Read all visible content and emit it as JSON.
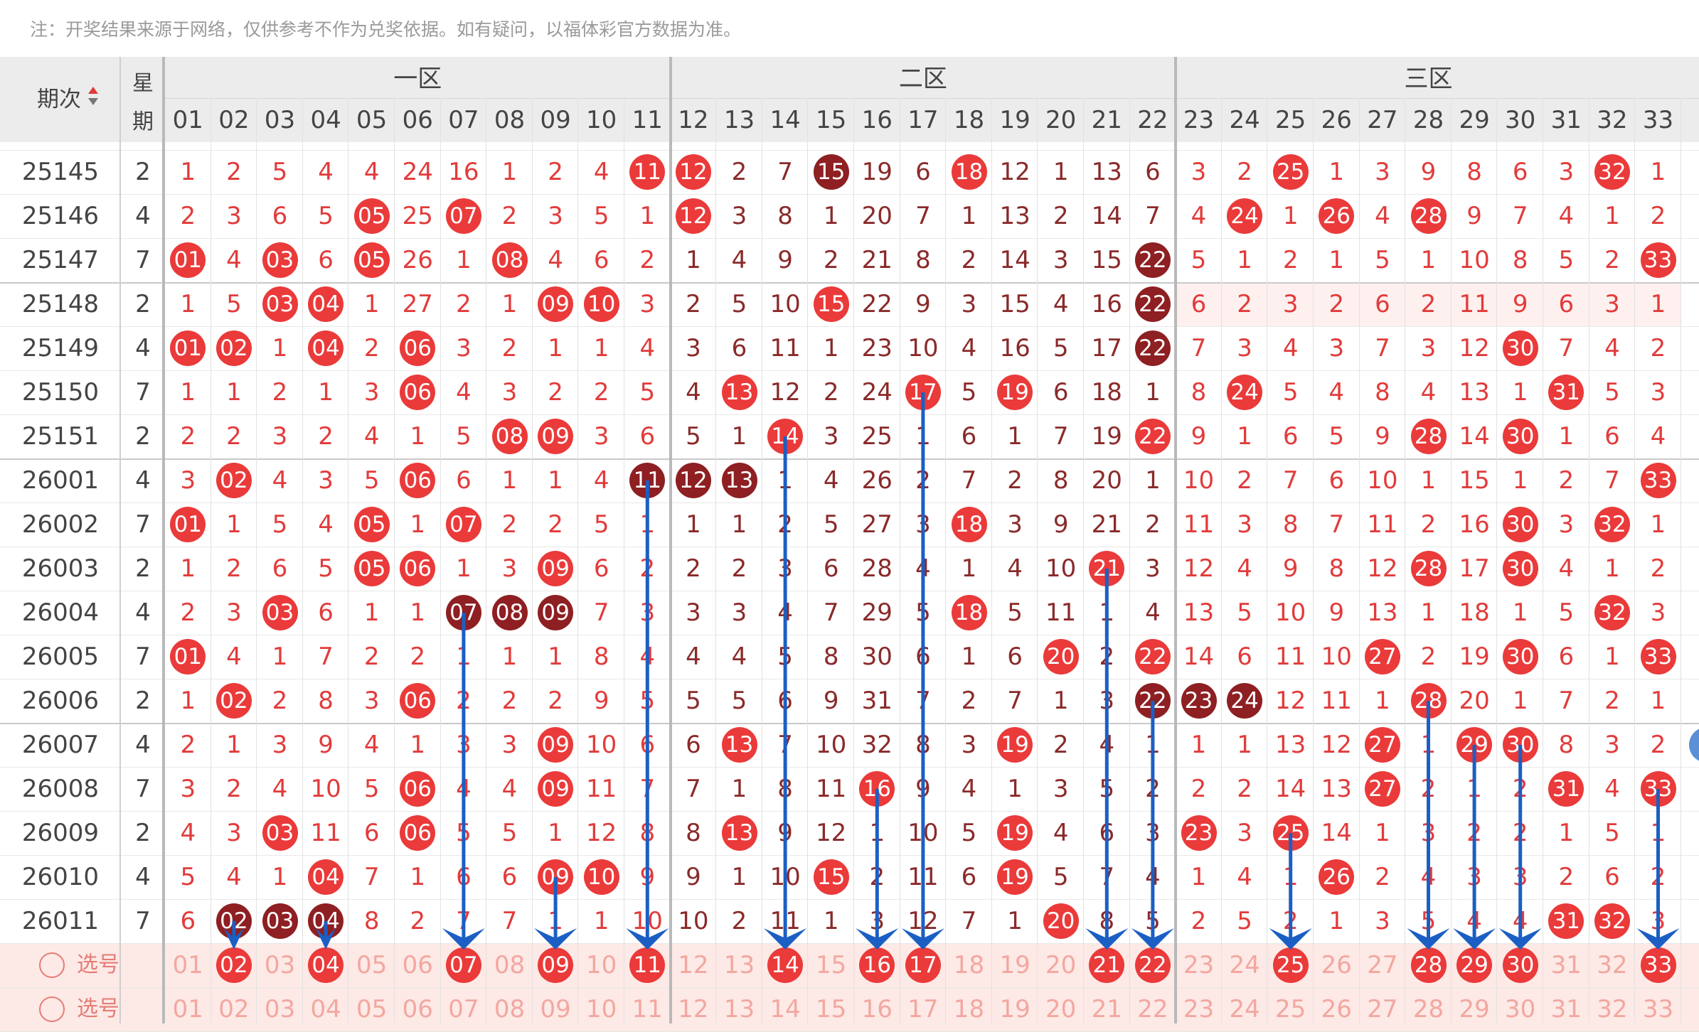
{
  "note": "注：开奖结果来源于网络，仅供参考不作为兑奖依据。如有疑问，以福体彩官方数据为准。",
  "header": {
    "issue_label": "期次",
    "week_label_top": "星",
    "week_label_bottom": "期",
    "zones": [
      "一区",
      "二区",
      "三区"
    ],
    "numbers": [
      "01",
      "02",
      "03",
      "04",
      "05",
      "06",
      "07",
      "08",
      "09",
      "10",
      "11",
      "12",
      "13",
      "14",
      "15",
      "16",
      "17",
      "18",
      "19",
      "20",
      "21",
      "22",
      "23",
      "24",
      "25",
      "26",
      "27",
      "28",
      "29",
      "30",
      "31",
      "32",
      "33"
    ]
  },
  "rows": [
    {
      "issue": "25145",
      "week": "2",
      "cells": [
        "1",
        "2",
        "5",
        "4",
        "4",
        "24",
        "16",
        "1",
        "2",
        "4",
        "11",
        "12",
        "2",
        "7",
        "15",
        "19",
        "6",
        "18",
        "12",
        "1",
        "13",
        "6",
        "3",
        "2",
        "25",
        "1",
        "3",
        "9",
        "8",
        "6",
        "3",
        "32",
        "1"
      ],
      "balls": {
        "10": "r",
        "11": "r",
        "14": "d",
        "17": "r",
        "24": "r",
        "31": "r"
      }
    },
    {
      "issue": "25146",
      "week": "4",
      "cells": [
        "2",
        "3",
        "6",
        "5",
        "05",
        "25",
        "07",
        "2",
        "3",
        "5",
        "1",
        "12",
        "3",
        "8",
        "1",
        "20",
        "7",
        "1",
        "13",
        "2",
        "14",
        "7",
        "4",
        "24",
        "1",
        "26",
        "4",
        "28",
        "9",
        "7",
        "4",
        "1",
        "2"
      ],
      "balls": {
        "4": "r",
        "6": "r",
        "11": "r",
        "23": "r",
        "25": "r",
        "27": "r"
      }
    },
    {
      "issue": "25147",
      "week": "7",
      "cells": [
        "01",
        "4",
        "03",
        "6",
        "05",
        "26",
        "1",
        "08",
        "4",
        "6",
        "2",
        "1",
        "4",
        "9",
        "2",
        "21",
        "8",
        "2",
        "14",
        "3",
        "15",
        "22",
        "5",
        "1",
        "2",
        "1",
        "5",
        "1",
        "10",
        "8",
        "5",
        "2",
        "33"
      ],
      "balls": {
        "0": "r",
        "2": "r",
        "4": "r",
        "7": "r",
        "21": "d",
        "32": "r"
      }
    },
    {
      "issue": "25148",
      "week": "2",
      "cells": [
        "1",
        "5",
        "03",
        "04",
        "1",
        "27",
        "2",
        "1",
        "09",
        "10",
        "3",
        "2",
        "5",
        "10",
        "15",
        "22",
        "9",
        "3",
        "15",
        "4",
        "16",
        "22",
        "6",
        "2",
        "3",
        "2",
        "6",
        "2",
        "11",
        "9",
        "6",
        "3",
        "1"
      ],
      "balls": {
        "2": "r",
        "3": "r",
        "8": "r",
        "9": "r",
        "14": "r",
        "21": "d"
      },
      "shade3": true
    },
    {
      "issue": "25149",
      "week": "4",
      "cells": [
        "01",
        "02",
        "1",
        "04",
        "2",
        "06",
        "3",
        "2",
        "1",
        "1",
        "4",
        "3",
        "6",
        "11",
        "1",
        "23",
        "10",
        "4",
        "16",
        "5",
        "17",
        "22",
        "7",
        "3",
        "4",
        "3",
        "7",
        "3",
        "12",
        "30",
        "7",
        "4",
        "2"
      ],
      "balls": {
        "0": "r",
        "1": "r",
        "3": "r",
        "5": "r",
        "21": "d",
        "29": "r"
      }
    },
    {
      "issue": "25150",
      "week": "7",
      "cells": [
        "1",
        "1",
        "2",
        "1",
        "3",
        "06",
        "4",
        "3",
        "2",
        "2",
        "5",
        "4",
        "13",
        "12",
        "2",
        "24",
        "17",
        "5",
        "19",
        "6",
        "18",
        "1",
        "8",
        "24",
        "5",
        "4",
        "8",
        "4",
        "13",
        "1",
        "31",
        "5",
        "3"
      ],
      "balls": {
        "5": "r",
        "12": "r",
        "16": "r",
        "18": "r",
        "23": "r",
        "30": "r"
      }
    },
    {
      "issue": "25151",
      "week": "2",
      "cells": [
        "2",
        "2",
        "3",
        "2",
        "4",
        "1",
        "5",
        "08",
        "09",
        "3",
        "6",
        "5",
        "1",
        "14",
        "3",
        "25",
        "1",
        "6",
        "1",
        "7",
        "19",
        "22",
        "9",
        "1",
        "6",
        "5",
        "9",
        "28",
        "14",
        "30",
        "1",
        "6",
        "4"
      ],
      "balls": {
        "7": "r",
        "8": "r",
        "13": "r",
        "21": "r",
        "27": "r",
        "29": "r"
      }
    },
    {
      "issue": "26001",
      "week": "4",
      "cells": [
        "3",
        "02",
        "4",
        "3",
        "5",
        "06",
        "6",
        "1",
        "1",
        "4",
        "11",
        "12",
        "13",
        "1",
        "4",
        "26",
        "2",
        "7",
        "2",
        "8",
        "20",
        "1",
        "10",
        "2",
        "7",
        "6",
        "10",
        "1",
        "15",
        "1",
        "2",
        "7",
        "33"
      ],
      "balls": {
        "1": "r",
        "5": "r",
        "10": "d",
        "11": "d",
        "12": "d",
        "32": "r"
      }
    },
    {
      "issue": "26002",
      "week": "7",
      "cells": [
        "01",
        "1",
        "5",
        "4",
        "05",
        "1",
        "07",
        "2",
        "2",
        "5",
        "1",
        "1",
        "1",
        "2",
        "5",
        "27",
        "3",
        "18",
        "3",
        "9",
        "21",
        "2",
        "11",
        "3",
        "8",
        "7",
        "11",
        "2",
        "16",
        "30",
        "3",
        "32",
        "1"
      ],
      "balls": {
        "0": "r",
        "4": "r",
        "6": "r",
        "17": "r",
        "29": "r",
        "31": "r"
      }
    },
    {
      "issue": "26003",
      "week": "2",
      "cells": [
        "1",
        "2",
        "6",
        "5",
        "05",
        "06",
        "1",
        "3",
        "09",
        "6",
        "2",
        "2",
        "2",
        "3",
        "6",
        "28",
        "4",
        "1",
        "4",
        "10",
        "21",
        "3",
        "12",
        "4",
        "9",
        "8",
        "12",
        "28",
        "17",
        "30",
        "4",
        "1",
        "2"
      ],
      "balls": {
        "4": "r",
        "5": "r",
        "8": "r",
        "20": "r",
        "27": "r",
        "29": "r"
      }
    },
    {
      "issue": "26004",
      "week": "4",
      "cells": [
        "2",
        "3",
        "03",
        "6",
        "1",
        "1",
        "07",
        "08",
        "09",
        "7",
        "3",
        "3",
        "3",
        "4",
        "7",
        "29",
        "5",
        "18",
        "5",
        "11",
        "1",
        "4",
        "13",
        "5",
        "10",
        "9",
        "13",
        "1",
        "18",
        "1",
        "5",
        "32",
        "3"
      ],
      "balls": {
        "2": "r",
        "6": "d",
        "7": "d",
        "8": "d",
        "17": "r",
        "31": "r"
      }
    },
    {
      "issue": "26005",
      "week": "7",
      "cells": [
        "01",
        "4",
        "1",
        "7",
        "2",
        "2",
        "1",
        "1",
        "1",
        "8",
        "4",
        "4",
        "4",
        "5",
        "8",
        "30",
        "6",
        "1",
        "6",
        "20",
        "2",
        "22",
        "14",
        "6",
        "11",
        "10",
        "27",
        "2",
        "19",
        "30",
        "6",
        "1",
        "33"
      ],
      "balls": {
        "0": "r",
        "19": "r",
        "21": "r",
        "26": "r",
        "29": "r",
        "32": "r"
      }
    },
    {
      "issue": "26006",
      "week": "2",
      "cells": [
        "1",
        "02",
        "2",
        "8",
        "3",
        "06",
        "2",
        "2",
        "2",
        "9",
        "5",
        "5",
        "5",
        "6",
        "9",
        "31",
        "7",
        "2",
        "7",
        "1",
        "3",
        "22",
        "23",
        "24",
        "12",
        "11",
        "1",
        "28",
        "20",
        "1",
        "7",
        "2",
        "1"
      ],
      "balls": {
        "1": "r",
        "5": "r",
        "21": "d",
        "22": "d",
        "23": "d",
        "27": "r"
      }
    },
    {
      "issue": "26007",
      "week": "4",
      "cells": [
        "2",
        "1",
        "3",
        "9",
        "4",
        "1",
        "3",
        "3",
        "09",
        "10",
        "6",
        "6",
        "13",
        "7",
        "10",
        "32",
        "8",
        "3",
        "19",
        "2",
        "4",
        "1",
        "1",
        "1",
        "13",
        "12",
        "27",
        "1",
        "29",
        "30",
        "8",
        "3",
        "2"
      ],
      "balls": {
        "8": "r",
        "12": "r",
        "18": "r",
        "26": "r",
        "28": "r",
        "29": "r"
      },
      "edge": "blue"
    },
    {
      "issue": "26008",
      "week": "7",
      "cells": [
        "3",
        "2",
        "4",
        "10",
        "5",
        "06",
        "4",
        "4",
        "09",
        "11",
        "7",
        "7",
        "1",
        "8",
        "11",
        "16",
        "9",
        "4",
        "1",
        "3",
        "5",
        "2",
        "2",
        "2",
        "14",
        "13",
        "27",
        "2",
        "1",
        "2",
        "31",
        "4",
        "33"
      ],
      "balls": {
        "5": "r",
        "8": "r",
        "15": "r",
        "26": "r",
        "30": "r",
        "32": "r"
      }
    },
    {
      "issue": "26009",
      "week": "2",
      "cells": [
        "4",
        "3",
        "03",
        "11",
        "6",
        "06",
        "5",
        "5",
        "1",
        "12",
        "8",
        "8",
        "13",
        "9",
        "12",
        "1",
        "10",
        "5",
        "19",
        "4",
        "6",
        "3",
        "23",
        "3",
        "25",
        "14",
        "1",
        "3",
        "2",
        "2",
        "1",
        "5",
        "1"
      ],
      "balls": {
        "2": "r",
        "5": "r",
        "12": "r",
        "18": "r",
        "22": "r",
        "24": "r"
      }
    },
    {
      "issue": "26010",
      "week": "4",
      "cells": [
        "5",
        "4",
        "1",
        "04",
        "7",
        "1",
        "6",
        "6",
        "09",
        "10",
        "9",
        "9",
        "1",
        "10",
        "15",
        "2",
        "11",
        "6",
        "19",
        "5",
        "7",
        "4",
        "1",
        "4",
        "1",
        "26",
        "2",
        "4",
        "3",
        "3",
        "2",
        "6",
        "2"
      ],
      "balls": {
        "3": "r",
        "8": "r",
        "9": "r",
        "14": "r",
        "18": "r",
        "25": "r"
      }
    },
    {
      "issue": "26011",
      "week": "7",
      "cells": [
        "6",
        "02",
        "03",
        "04",
        "8",
        "2",
        "7",
        "7",
        "1",
        "1",
        "10",
        "10",
        "2",
        "11",
        "1",
        "3",
        "12",
        "7",
        "1",
        "20",
        "8",
        "5",
        "2",
        "5",
        "2",
        "1",
        "3",
        "5",
        "4",
        "4",
        "31",
        "32",
        "3"
      ],
      "balls": {
        "1": "d",
        "2": "d",
        "3": "d",
        "19": "r",
        "30": "r",
        "31": "r"
      }
    }
  ],
  "pick_rows": [
    {
      "label": "选号",
      "selected": [
        "02",
        "04",
        "07",
        "09",
        "11",
        "14",
        "16",
        "17",
        "21",
        "22",
        "25",
        "28",
        "29",
        "30",
        "33"
      ]
    },
    {
      "label": "选号",
      "selected": []
    }
  ],
  "sort_indicator": "sort-arrows-icon",
  "arrow_color": "#1b5fc4",
  "arrow_columns": [
    "02",
    "04",
    "07",
    "09",
    "11",
    "14",
    "16",
    "17",
    "21",
    "22",
    "25",
    "28",
    "29",
    "30",
    "33"
  ]
}
